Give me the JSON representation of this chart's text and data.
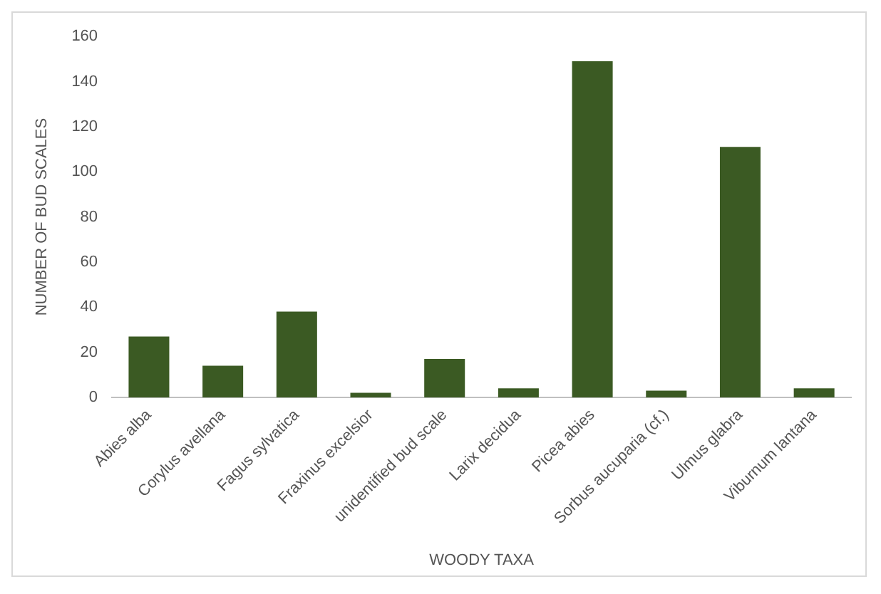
{
  "chart_data": {
    "type": "bar",
    "xlabel": "WOODY TAXA",
    "ylabel": "NUMBER OF BUD SCALES",
    "categories": [
      "Abies alba",
      "Corylus avellana",
      "Fagus sylvatica",
      "Fraxinus excelsior",
      "unidentified bud scale",
      "Larix decidua",
      "Picea abies",
      "Sorbus aucuparia (cf.)",
      "Ulmus glabra",
      "Viburnum lantana"
    ],
    "values": [
      27,
      14,
      38,
      2,
      17,
      4,
      149,
      3,
      111,
      4
    ],
    "color": "#3b5a23",
    "ylim": [
      0,
      160
    ],
    "yticks": [
      0,
      20,
      40,
      60,
      80,
      100,
      120,
      140,
      160
    ],
    "grid": false,
    "legend": false
  }
}
